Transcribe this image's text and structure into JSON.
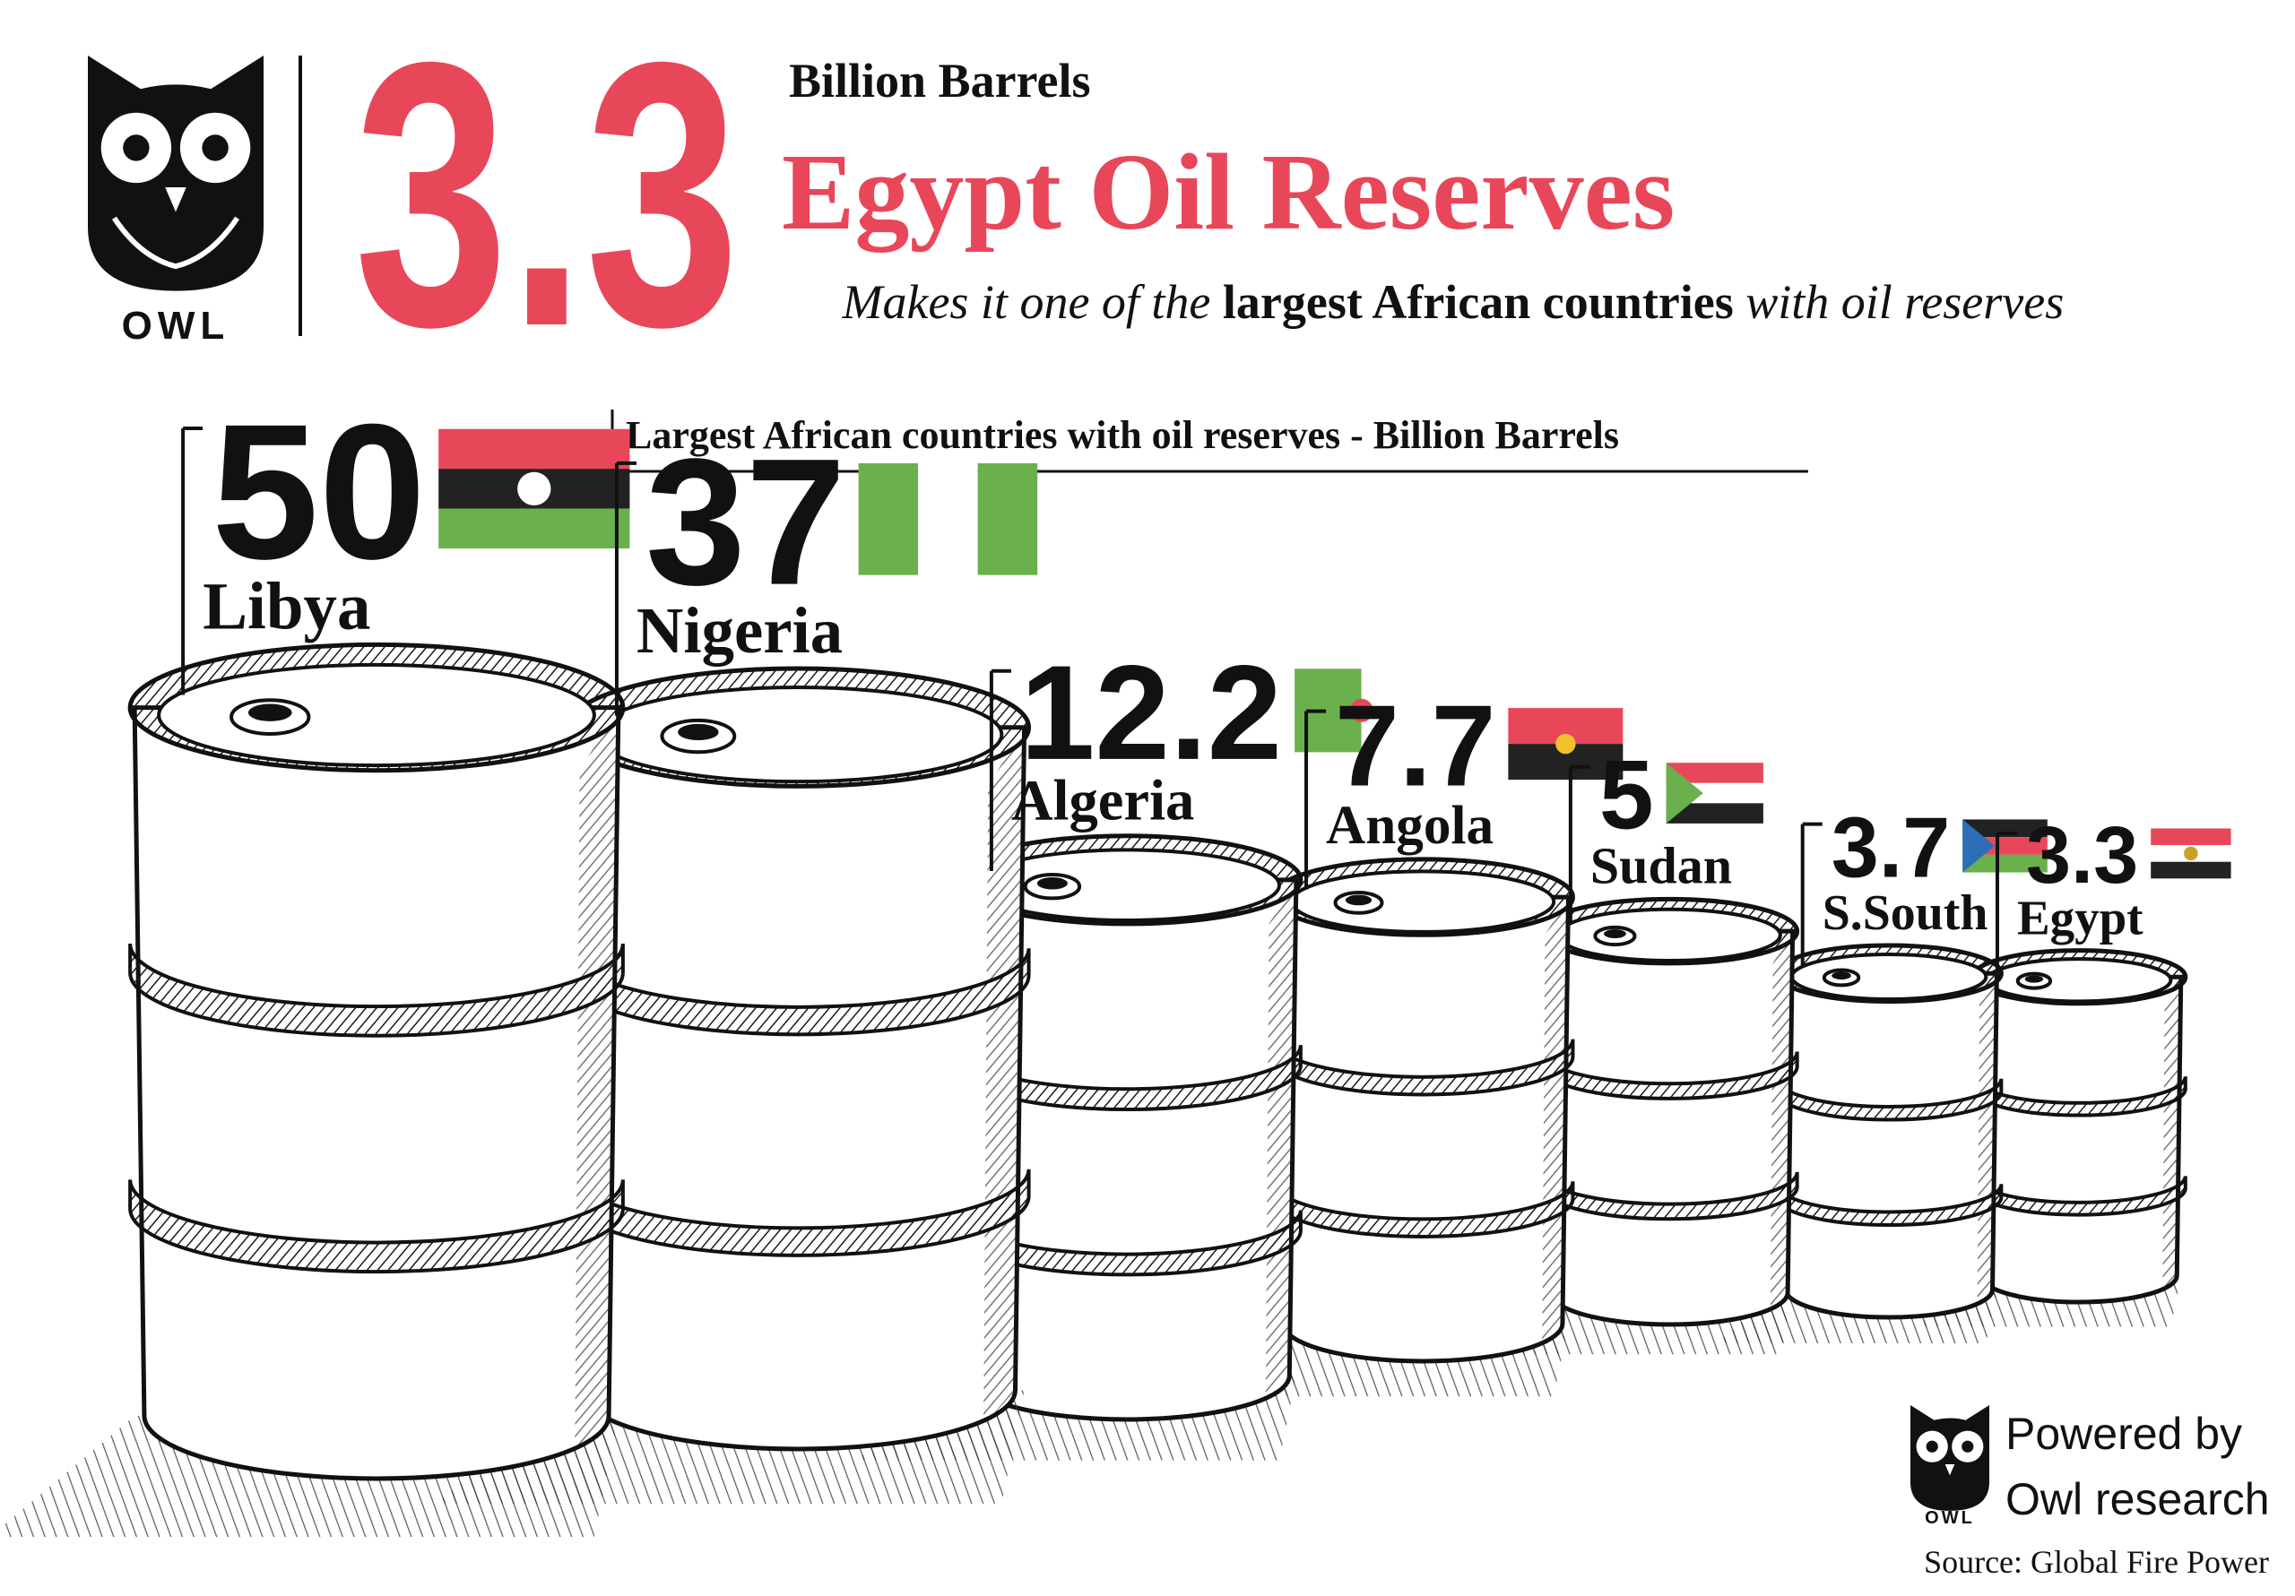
{
  "header": {
    "logo": "OWL",
    "headline": 3.3,
    "unit": "Billion Barrels",
    "title": "Egypt Oil Reserves",
    "subtitle": [
      "Makes it one of the ",
      "largest African countries",
      " with oil reserves"
    ]
  },
  "chart_data": {
    "type": "barrel",
    "title": "Largest African countries with oil reserves - Billion Barrels",
    "categories": [
      "Libya",
      "Nigeria",
      "Algeria",
      "Angola",
      "Sudan",
      "S.South",
      "Egypt"
    ],
    "values": [
      50,
      37,
      12.2,
      7.7,
      5,
      3.7,
      3.3
    ],
    "color": "#111111"
  },
  "footer": {
    "powered_by": "Powered by",
    "brand": "Owl research",
    "source": "Source: Global Fire Power"
  }
}
